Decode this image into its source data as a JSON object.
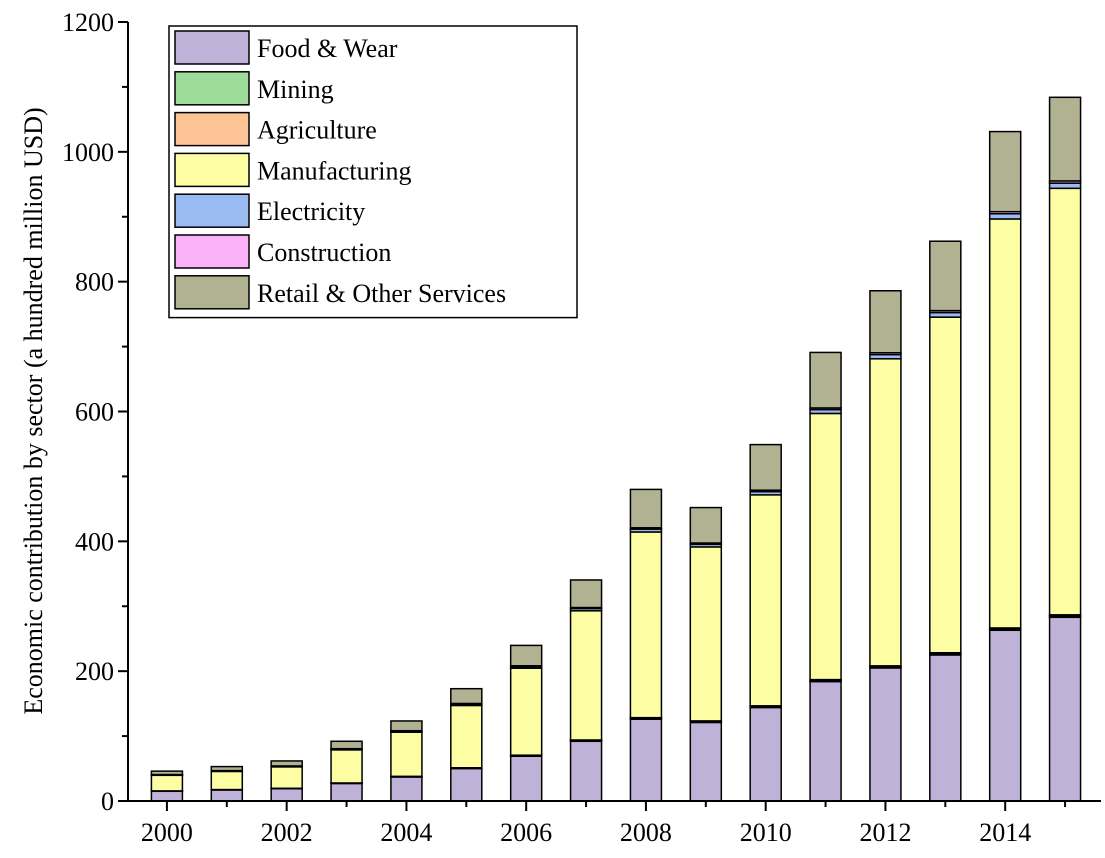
{
  "chart_data": {
    "type": "bar",
    "stacked": true,
    "title": "",
    "xlabel": "",
    "ylabel": "Economic contribution by sector (a hundred million USD)",
    "ylim": [
      0,
      1200
    ],
    "yticks": [
      0,
      200,
      400,
      600,
      800,
      1000,
      1200
    ],
    "xticks": [
      2000,
      2002,
      2004,
      2006,
      2008,
      2010,
      2012,
      2014
    ],
    "grid": false,
    "legend_position": "top-left",
    "categories": [
      2000,
      2001,
      2002,
      2003,
      2004,
      2005,
      2006,
      2007,
      2008,
      2009,
      2010,
      2011,
      2012,
      2013,
      2014,
      2015
    ],
    "series": [
      {
        "name": "Food & Wear",
        "color": "#bfb2d8",
        "values": [
          15,
          17,
          19,
          27,
          37,
          50,
          69,
          92,
          126,
          121,
          144,
          184,
          205,
          225,
          263,
          283
        ]
      },
      {
        "name": "Mining",
        "color": "#9edc9c",
        "values": [
          0.3,
          0.3,
          0.3,
          0.4,
          0.5,
          0.6,
          0.8,
          1,
          1.2,
          1.2,
          1.3,
          1.5,
          1.6,
          1.7,
          1.8,
          1.9
        ]
      },
      {
        "name": "Agriculture",
        "color": "#fdc596",
        "values": [
          0.3,
          0.3,
          0.3,
          0.4,
          0.5,
          0.6,
          0.8,
          1,
          1.2,
          1.2,
          1.3,
          1.5,
          1.6,
          1.7,
          1.8,
          1.9
        ]
      },
      {
        "name": "Manufacturing",
        "color": "#fdfda3",
        "values": [
          24,
          28,
          33,
          51,
          68,
          96,
          134,
          199,
          286,
          268,
          325,
          410,
          473,
          517,
          630,
          657
        ]
      },
      {
        "name": "Electricity",
        "color": "#9abbf1",
        "values": [
          0.7,
          0.8,
          0.9,
          1.2,
          1.5,
          2,
          2.5,
          3.5,
          4.5,
          4,
          5,
          6,
          6.5,
          7,
          8,
          8
        ]
      },
      {
        "name": "Construction",
        "color": "#fbb1f5",
        "values": [
          0.4,
          0.4,
          0.5,
          0.6,
          0.8,
          1,
          1.2,
          1.5,
          2,
          2,
          2.2,
          2.5,
          2.8,
          3,
          3.2,
          3.4
        ]
      },
      {
        "name": "Retail & Other Services",
        "color": "#b0b291",
        "values": [
          5.3,
          6.2,
          7.7,
          11.4,
          15,
          22.8,
          31.4,
          42.5,
          59.1,
          54.6,
          70.2,
          85.5,
          95.5,
          106.9,
          123.4,
          128.8
        ]
      }
    ]
  }
}
